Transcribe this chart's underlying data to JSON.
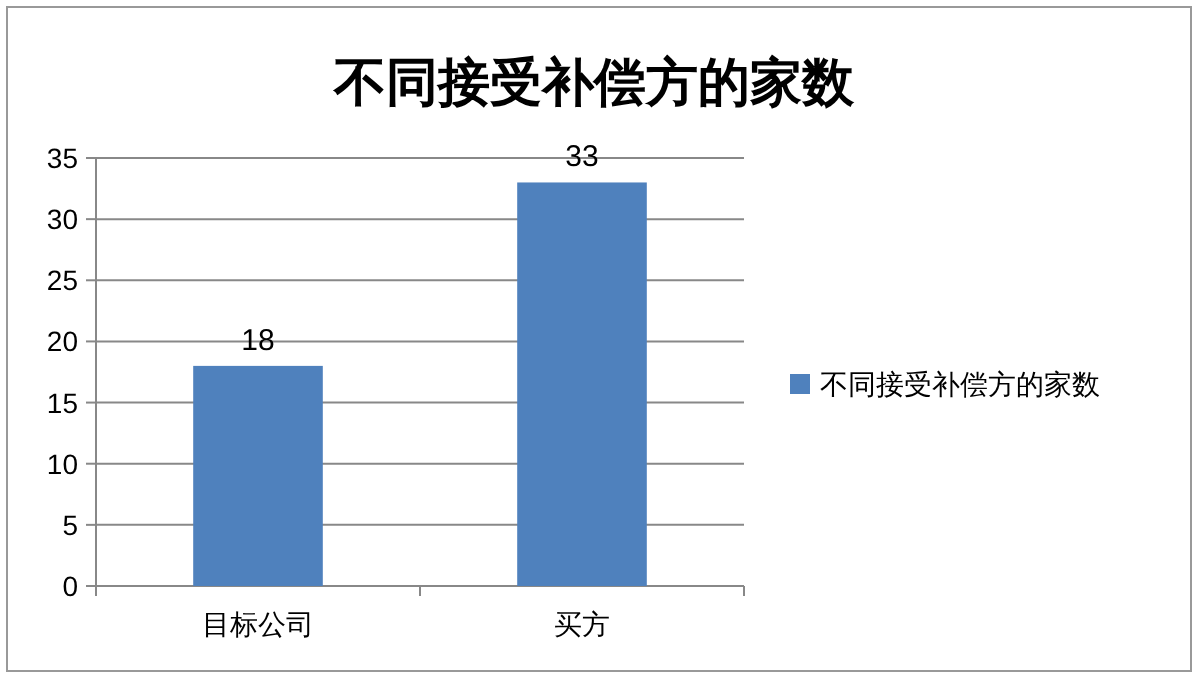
{
  "chart_data": {
    "type": "bar",
    "title": "不同接受补偿方的家数",
    "categories": [
      "目标公司",
      "买方"
    ],
    "series": [
      {
        "name": "不同接受补偿方的家数",
        "color": "#4f81bd",
        "values": [
          18,
          33
        ]
      }
    ],
    "ylim": [
      0,
      35
    ],
    "yticks": [
      0,
      5,
      10,
      15,
      20,
      25,
      30,
      35
    ],
    "grid": "y",
    "legend": "right",
    "data_labels": true
  }
}
